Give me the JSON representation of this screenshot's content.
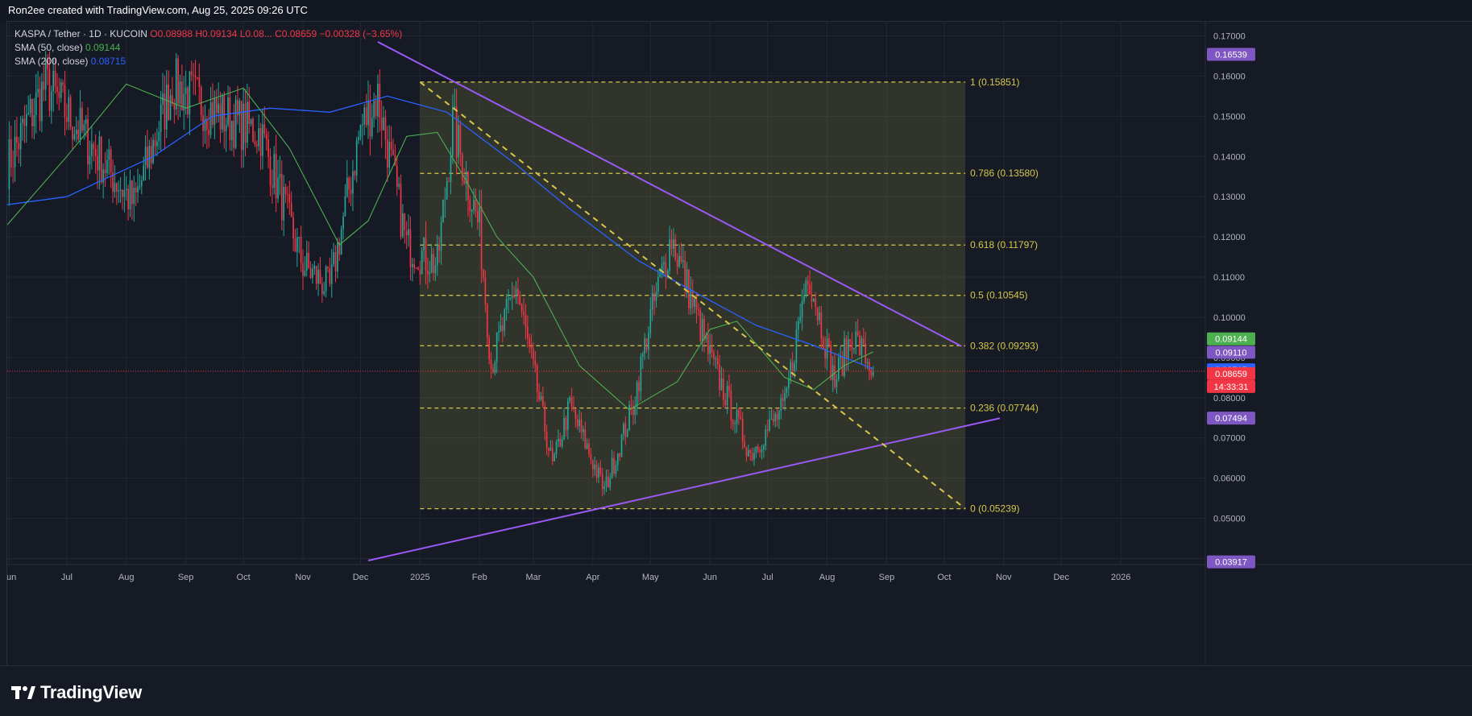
{
  "header": {
    "attribution": "Ron2ee created with TradingView.com, Aug 25, 2025 09:26 UTC"
  },
  "legend": {
    "symbol": "KASPA / Tether · 1D · KUCOIN",
    "ohlc": "O0.08988 H0.09134 L0.08... C0.08659 −0.00328 (−3.65%)",
    "sma50_label": "SMA (50, close)",
    "sma50_value": "0.09144",
    "sma200_label": "SMA (200, close)",
    "sma200_value": "0.08715"
  },
  "footer": {
    "brand": "TradingView"
  },
  "colors": {
    "background": "#161a25",
    "up": "#26a69a",
    "down": "#f23645",
    "sma50": "#4caf50",
    "sma200": "#2962ff",
    "trendline": "#9b59f5",
    "fib": "#d8c74a",
    "fib_zone": "rgba(120,123,60,0.28)"
  },
  "chart_data": {
    "type": "candlestick",
    "title": "KASPA / Tether · 1D · KUCOIN",
    "x_ticks": [
      "Jun",
      "Jul",
      "Aug",
      "Sep",
      "Oct",
      "Nov",
      "Dec",
      "2025",
      "Feb",
      "Mar",
      "Apr",
      "May",
      "Jun",
      "Jul",
      "Aug",
      "Sep",
      "Oct",
      "Nov",
      "Dec",
      "2026"
    ],
    "x_tick_dates": [
      "2024-06-01",
      "2024-07-01",
      "2024-08-01",
      "2024-09-01",
      "2024-10-01",
      "2024-11-01",
      "2024-12-01",
      "2025-01-01",
      "2025-02-01",
      "2025-03-01",
      "2025-04-01",
      "2025-05-01",
      "2025-06-01",
      "2025-07-01",
      "2025-08-01",
      "2025-09-01",
      "2025-10-01",
      "2025-11-01",
      "2025-12-01",
      "2026-01-01"
    ],
    "y_ticks": [
      "0.17000",
      "0.16000",
      "0.15000",
      "0.14000",
      "0.13000",
      "0.12000",
      "0.11000",
      "0.10000",
      "0.09000",
      "0.08000",
      "0.07000",
      "0.06000",
      "0.05000",
      "0.04000"
    ],
    "y_range": [
      0.0385,
      0.1735
    ],
    "x_range": [
      "2024-05-31",
      "2026-02-14"
    ],
    "anchors": [
      {
        "date": "2024-05-31",
        "close": 0.138
      },
      {
        "date": "2024-06-20",
        "close": 0.158
      },
      {
        "date": "2024-07-10",
        "close": 0.145
      },
      {
        "date": "2024-08-05",
        "close": 0.128
      },
      {
        "date": "2024-08-25",
        "close": 0.158
      },
      {
        "date": "2024-09-20",
        "close": 0.15
      },
      {
        "date": "2024-10-10",
        "close": 0.146
      },
      {
        "date": "2024-11-01",
        "close": 0.113
      },
      {
        "date": "2024-11-15",
        "close": 0.107
      },
      {
        "date": "2024-12-01",
        "close": 0.147
      },
      {
        "date": "2024-12-10",
        "close": 0.155
      },
      {
        "date": "2024-12-25",
        "close": 0.118
      },
      {
        "date": "2025-01-10",
        "close": 0.113
      },
      {
        "date": "2025-01-18",
        "close": 0.148
      },
      {
        "date": "2025-02-01",
        "close": 0.122
      },
      {
        "date": "2025-02-07",
        "close": 0.088
      },
      {
        "date": "2025-02-20",
        "close": 0.108
      },
      {
        "date": "2025-03-11",
        "close": 0.063
      },
      {
        "date": "2025-03-20",
        "close": 0.078
      },
      {
        "date": "2025-04-07",
        "close": 0.057
      },
      {
        "date": "2025-04-22",
        "close": 0.078
      },
      {
        "date": "2025-05-01",
        "close": 0.1
      },
      {
        "date": "2025-05-12",
        "close": 0.12
      },
      {
        "date": "2025-06-01",
        "close": 0.09
      },
      {
        "date": "2025-06-22",
        "close": 0.066
      },
      {
        "date": "2025-07-10",
        "close": 0.078
      },
      {
        "date": "2025-07-22",
        "close": 0.112
      },
      {
        "date": "2025-08-05",
        "close": 0.084
      },
      {
        "date": "2025-08-14",
        "close": 0.096
      },
      {
        "date": "2025-08-25",
        "close": 0.0866
      }
    ],
    "sma50_path": [
      {
        "date": "2024-05-31",
        "value": 0.123
      },
      {
        "date": "2024-07-01",
        "value": 0.14
      },
      {
        "date": "2024-08-01",
        "value": 0.158
      },
      {
        "date": "2024-09-01",
        "value": 0.152
      },
      {
        "date": "2024-10-01",
        "value": 0.157
      },
      {
        "date": "2024-10-25",
        "value": 0.142
      },
      {
        "date": "2024-11-20",
        "value": 0.118
      },
      {
        "date": "2024-12-05",
        "value": 0.124
      },
      {
        "date": "2024-12-25",
        "value": 0.145
      },
      {
        "date": "2025-01-10",
        "value": 0.146
      },
      {
        "date": "2025-01-25",
        "value": 0.134
      },
      {
        "date": "2025-02-10",
        "value": 0.12
      },
      {
        "date": "2025-03-01",
        "value": 0.11
      },
      {
        "date": "2025-03-25",
        "value": 0.088
      },
      {
        "date": "2025-04-20",
        "value": 0.077
      },
      {
        "date": "2025-05-15",
        "value": 0.084
      },
      {
        "date": "2025-06-01",
        "value": 0.097
      },
      {
        "date": "2025-06-15",
        "value": 0.099
      },
      {
        "date": "2025-07-10",
        "value": 0.085
      },
      {
        "date": "2025-07-25",
        "value": 0.082
      },
      {
        "date": "2025-08-10",
        "value": 0.088
      },
      {
        "date": "2025-08-25",
        "value": 0.0914
      }
    ],
    "sma200_path": [
      {
        "date": "2024-05-31",
        "value": 0.128
      },
      {
        "date": "2024-07-01",
        "value": 0.13
      },
      {
        "date": "2024-08-15",
        "value": 0.14
      },
      {
        "date": "2024-09-15",
        "value": 0.15
      },
      {
        "date": "2024-10-15",
        "value": 0.152
      },
      {
        "date": "2024-11-15",
        "value": 0.151
      },
      {
        "date": "2024-12-15",
        "value": 0.155
      },
      {
        "date": "2025-01-15",
        "value": 0.151
      },
      {
        "date": "2025-02-20",
        "value": 0.138
      },
      {
        "date": "2025-03-20",
        "value": 0.127
      },
      {
        "date": "2025-04-25",
        "value": 0.114
      },
      {
        "date": "2025-05-25",
        "value": 0.106
      },
      {
        "date": "2025-06-25",
        "value": 0.098
      },
      {
        "date": "2025-07-25",
        "value": 0.093
      },
      {
        "date": "2025-08-25",
        "value": 0.0872
      }
    ],
    "trendlines": [
      {
        "name": "descending resistance",
        "from": {
          "date": "2024-12-10",
          "value": 0.1685
        },
        "to": {
          "date": "2025-10-10",
          "value": 0.0928
        }
      },
      {
        "name": "ascending support",
        "from": {
          "date": "2024-12-05",
          "value": 0.0395
        },
        "to": {
          "date": "2025-10-30",
          "value": 0.0749
        }
      }
    ],
    "diagonal_dashed": {
      "from": {
        "date": "2025-01-01",
        "value": 0.1585
      },
      "to": {
        "date": "2025-10-12",
        "value": 0.0524
      }
    },
    "fibonacci": {
      "start_date": "2025-01-01",
      "end_date": "2025-10-12",
      "levels": [
        {
          "label": "1 (0.15851)",
          "value": 0.15851
        },
        {
          "label": "0.786 (0.13580)",
          "value": 0.1358
        },
        {
          "label": "0.618 (0.11797)",
          "value": 0.11797
        },
        {
          "label": "0.5 (0.10545)",
          "value": 0.10545
        },
        {
          "label": "0.382 (0.09293)",
          "value": 0.09293
        },
        {
          "label": "0.236 (0.07744)",
          "value": 0.07744
        },
        {
          "label": "0 (0.05239)",
          "value": 0.05239
        }
      ]
    },
    "price_line": 0.08659,
    "price_badges": [
      {
        "text": "0.16539",
        "value": 0.16539,
        "color": "#7e57c2"
      },
      {
        "text": "0.09144",
        "value": 0.09144,
        "color": "#4caf50"
      },
      {
        "text": "0.09110",
        "value": 0.0911,
        "color": "#7e57c2"
      },
      {
        "text": "0.08715",
        "value": 0.08715,
        "color": "#2962ff"
      },
      {
        "text": "0.08659",
        "value": 0.08659,
        "color": "#f23645"
      },
      {
        "text": "14:33:31",
        "value": 0.08659,
        "color": "#f23645",
        "secondary": true
      },
      {
        "text": "0.07494",
        "value": 0.07494,
        "color": "#7e57c2"
      },
      {
        "text": "0.03917",
        "value": 0.03917,
        "color": "#7e57c2"
      }
    ]
  }
}
